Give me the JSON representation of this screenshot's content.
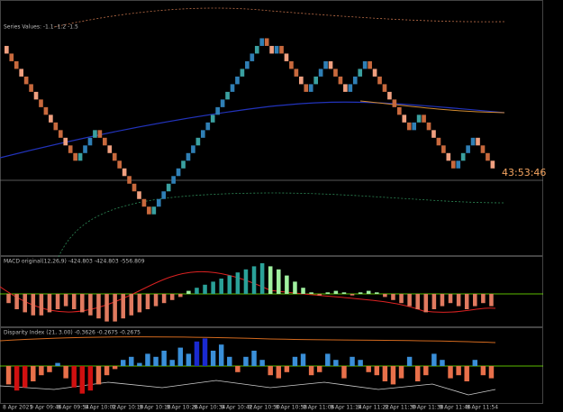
{
  "price": {
    "label": "Series Values: -1.1 -1.2 -1.5",
    "timer": "43:53:46",
    "ylim": [
      0,
      100
    ],
    "bricks": [
      79,
      76,
      73,
      70,
      67,
      64,
      61,
      58,
      55,
      52,
      49,
      46,
      43,
      40,
      37,
      40,
      43,
      46,
      49,
      46,
      43,
      40,
      37,
      34,
      31,
      28,
      25,
      22,
      19,
      16,
      19,
      22,
      25,
      28,
      31,
      34,
      37,
      40,
      43,
      46,
      49,
      52,
      55,
      58,
      61,
      64,
      67,
      70,
      73,
      76,
      79,
      82,
      85,
      82,
      79,
      82,
      79,
      76,
      73,
      70,
      67,
      64,
      67,
      70,
      73,
      76,
      73,
      70,
      67,
      64,
      67,
      70,
      73,
      76,
      73,
      70,
      67,
      64,
      61,
      58,
      55,
      52,
      49,
      52,
      55,
      52,
      49,
      46,
      43,
      40,
      37,
      34,
      37,
      40,
      43,
      46,
      43,
      40,
      37,
      34
    ]
  },
  "macd": {
    "label": "MACD original(12,26,9) -424.803 -424.803 -556.809",
    "ylim": [
      -1,
      1
    ],
    "histogram": [
      -0.3,
      -0.5,
      -0.6,
      -0.7,
      -0.7,
      -0.6,
      -0.5,
      -0.4,
      -0.5,
      -0.6,
      -0.7,
      -0.8,
      -0.9,
      -0.9,
      -0.8,
      -0.7,
      -0.6,
      -0.5,
      -0.4,
      -0.3,
      -0.2,
      -0.1,
      0.1,
      0.2,
      0.3,
      0.4,
      0.5,
      0.6,
      0.7,
      0.8,
      0.9,
      1.0,
      0.9,
      0.8,
      0.6,
      0.4,
      0.2,
      0.05,
      -0.05,
      0.05,
      0.1,
      0.05,
      -0.05,
      0.05,
      0.1,
      0.05,
      -0.1,
      -0.2,
      -0.3,
      -0.4,
      -0.5,
      -0.6,
      -0.5,
      -0.4,
      -0.3,
      -0.4,
      -0.5,
      -0.4,
      -0.3,
      -0.4
    ]
  },
  "disparity": {
    "label": "Disparity Index (21, 3.00) -0.3626 -0.2675 -0.2675",
    "ylim": [
      -1,
      1
    ],
    "bars": [
      -0.6,
      -0.8,
      -0.7,
      -0.5,
      -0.3,
      -0.2,
      0.1,
      -0.4,
      -0.7,
      -0.9,
      -0.8,
      -0.6,
      -0.3,
      -0.1,
      0.2,
      0.3,
      0.1,
      0.4,
      0.3,
      0.5,
      0.2,
      0.6,
      0.4,
      0.8,
      0.9,
      0.5,
      0.7,
      0.3,
      -0.2,
      0.3,
      0.5,
      0.2,
      -0.3,
      -0.4,
      -0.2,
      0.3,
      0.4,
      -0.3,
      -0.2,
      0.4,
      0.2,
      -0.4,
      0.3,
      0.2,
      -0.2,
      -0.3,
      -0.5,
      -0.6,
      -0.4,
      0.3,
      -0.5,
      -0.3,
      0.4,
      0.2,
      -0.4,
      -0.3,
      -0.5,
      0.2,
      -0.3,
      -0.4
    ]
  },
  "time_axis": [
    "8 Apr 2021",
    "9 Apr 09:46",
    "9 Apr 09:54",
    "9 Apr 10:02",
    "9 Apr 10:10",
    "9 Apr 10:18",
    "9 Apr 10:26",
    "9 Apr 10:34",
    "9 Apr 10:42",
    "9 Apr 10:50",
    "9 Apr 10:58",
    "9 Apr 11:06",
    "9 Apr 11:14",
    "9 Apr 11:22",
    "9 Apr 11:30",
    "9 Apr 11:38",
    "9 Apr 11:46",
    "9 Apr 11:54"
  ]
}
